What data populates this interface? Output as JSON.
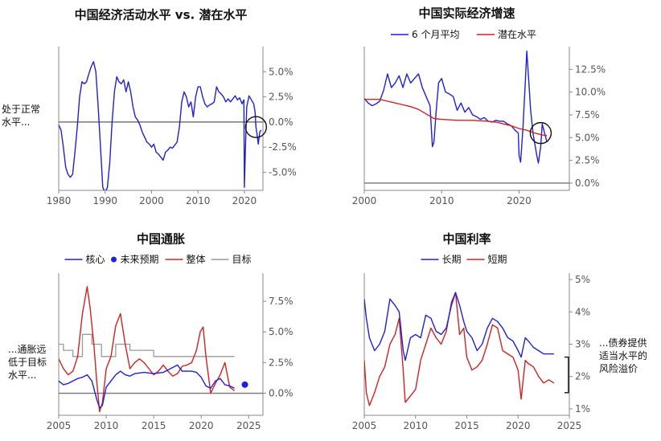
{
  "notes": {
    "activity": [
      "处于正常",
      "水平..."
    ],
    "inflation": [
      "...通胀远",
      "低于目标",
      "水平..."
    ],
    "rates": [
      "...债券提供",
      "适当水平的",
      "风险溢价"
    ]
  },
  "colors": {
    "blue": "#1f1fdd",
    "red": "#d42020",
    "gray": "#9a9a9a",
    "axis": "#888888",
    "zero": "#777777"
  },
  "chart_data": [
    {
      "id": "activity",
      "type": "line",
      "title": "中国经济活动水平 vs. 潜在水平",
      "xlim": [
        1980,
        2024
      ],
      "ylim": [
        -6.8,
        7.5
      ],
      "xticks": [
        1980,
        1990,
        2000,
        2010,
        2020
      ],
      "xtick_labels": [
        "1980",
        "1990",
        "2000",
        "2010",
        "2020"
      ],
      "yticks": [
        5,
        2.5,
        0,
        -2.5,
        -5
      ],
      "ytick_labels": [
        "5.0%",
        "2.5%",
        "0.0%",
        "-2.5%",
        "-5.0%"
      ],
      "y_axis_side": "right",
      "zero_line": 0,
      "circle": {
        "x": 2022.5,
        "y": -0.5
      },
      "series": [
        {
          "color": "blue",
          "x": [
            1980,
            1980.5,
            1981,
            1981.5,
            1982,
            1982.5,
            1983,
            1983.5,
            1984,
            1984.5,
            1985,
            1985.5,
            1986,
            1986.5,
            1987,
            1987.5,
            1988,
            1988.5,
            1989,
            1989.5,
            1990,
            1990.5,
            1991,
            1991.5,
            1992,
            1992.5,
            1993,
            1993.5,
            1994,
            1994.5,
            1995,
            1995.5,
            1996,
            1996.5,
            1997,
            1997.5,
            1998,
            1998.5,
            1999,
            1999.5,
            2000,
            2000.5,
            2001,
            2001.5,
            2002,
            2002.5,
            2003,
            2003.5,
            2004,
            2004.5,
            2005,
            2005.5,
            2006,
            2006.5,
            2007,
            2007.5,
            2008,
            2008.5,
            2009,
            2009.5,
            2010,
            2010.5,
            2011,
            2011.5,
            2012,
            2012.5,
            2013,
            2013.5,
            2014,
            2014.5,
            2015,
            2015.5,
            2016,
            2016.5,
            2017,
            2017.5,
            2018,
            2018.5,
            2019,
            2019.5,
            2019.9,
            2020,
            2020.2,
            2020.5,
            2021,
            2021.5,
            2022,
            2022.3,
            2022.5,
            2022.8,
            2023,
            2023.3,
            2023.6
          ],
          "y": [
            -0.3,
            -0.8,
            -2.5,
            -4.5,
            -5.2,
            -5.5,
            -5.2,
            -3,
            -0.5,
            2.5,
            4,
            3.8,
            4,
            4.8,
            5.5,
            6,
            5,
            1.5,
            -2.5,
            -6.5,
            -7,
            -6.5,
            -4,
            0,
            3,
            4.5,
            4,
            3.8,
            4.2,
            3,
            4,
            3,
            1.5,
            0.5,
            0.2,
            -0.3,
            -1,
            -1.5,
            -2,
            -2.2,
            -2.5,
            -2.2,
            -3,
            -3.2,
            -3.5,
            -3.8,
            -3,
            -2.8,
            -2.5,
            -2.6,
            -2.3,
            -2,
            -0.5,
            2,
            3,
            2.5,
            1.5,
            2,
            0.5,
            2.5,
            3.5,
            3.5,
            2.5,
            1.8,
            1.5,
            1.7,
            1.8,
            2,
            3.5,
            3,
            2.8,
            2.5,
            2,
            2.3,
            2,
            2.3,
            2.6,
            2.2,
            2.4,
            1.8,
            2.2,
            -6.5,
            -3,
            1.5,
            2.6,
            2.2,
            1.8,
            1,
            -0.5,
            -1.5,
            -2.2,
            -1,
            -0.8
          ]
        }
      ]
    },
    {
      "id": "growth",
      "type": "line",
      "title": "中国实际经济增速",
      "legend": [
        "6 个月平均",
        "潜在水平"
      ],
      "xlim": [
        2000,
        2026.5
      ],
      "ylim": [
        -0.8,
        15
      ],
      "xticks": [
        2000,
        2010,
        2020
      ],
      "xtick_labels": [
        "2000",
        "2010",
        "2020"
      ],
      "yticks": [
        12.5,
        10,
        7.5,
        5,
        2.5,
        0
      ],
      "ytick_labels": [
        "12.5%",
        "10.0%",
        "7.5%",
        "5.0%",
        "2.5%",
        "0.0%"
      ],
      "y_axis_side": "right",
      "zero_line": 0,
      "circle": {
        "x": 2022.8,
        "y": 5.5
      },
      "series": [
        {
          "name": "6 个月平均",
          "color": "blue",
          "x": [
            2000,
            2000.5,
            2001,
            2001.5,
            2002,
            2002.5,
            2003,
            2003.5,
            2004,
            2004.5,
            2005,
            2005.5,
            2006,
            2006.5,
            2007,
            2007.5,
            2008,
            2008.5,
            2008.8,
            2009,
            2009.3,
            2009.6,
            2010,
            2010.5,
            2011,
            2011.5,
            2012,
            2012.5,
            2013,
            2013.5,
            2014,
            2014.5,
            2015,
            2015.5,
            2016,
            2016.5,
            2017,
            2017.5,
            2018,
            2018.5,
            2019,
            2019.5,
            2019.9,
            2020,
            2020.2,
            2020.5,
            2020.8,
            2021,
            2021.2,
            2021.5,
            2021.8,
            2022,
            2022.3,
            2022.5,
            2022.8,
            2023,
            2023.3,
            2023.6
          ],
          "y": [
            9.3,
            8.8,
            8.5,
            8.7,
            9,
            10.2,
            12,
            10.5,
            11,
            11.8,
            10.5,
            12,
            11,
            11.5,
            12,
            10.5,
            9.5,
            8.5,
            4,
            4.5,
            8,
            11,
            11.5,
            10,
            9.8,
            9.5,
            8,
            8.8,
            7.8,
            8.3,
            7.5,
            7.3,
            7,
            7.2,
            6.8,
            6.7,
            6.9,
            6.8,
            6.8,
            6.5,
            6.3,
            5.8,
            5.5,
            3,
            2.3,
            6,
            11,
            14.5,
            12,
            8,
            5.5,
            4.5,
            3,
            2.2,
            4,
            6.5,
            5.5,
            4.5
          ]
        },
        {
          "name": "潜在水平",
          "color": "red",
          "x": [
            2000,
            2002,
            2003,
            2004,
            2005,
            2006,
            2007,
            2008,
            2009,
            2010,
            2012,
            2014,
            2016,
            2017,
            2018,
            2019,
            2020,
            2021,
            2022,
            2023,
            2023.6
          ],
          "y": [
            9.2,
            9.2,
            9,
            8.8,
            8.6,
            8.4,
            8.1,
            7.6,
            7.1,
            7,
            6.9,
            6.9,
            6.8,
            6.7,
            6.5,
            6.3,
            6,
            5.8,
            5.5,
            5.3,
            5.2
          ]
        }
      ]
    },
    {
      "id": "inflation",
      "type": "line",
      "title": "中国通胀",
      "legend": [
        "核心",
        "未来预期",
        "整体",
        "目标"
      ],
      "xlim": [
        2005,
        2026.5
      ],
      "ylim": [
        -1.8,
        9.8
      ],
      "xticks": [
        2005,
        2010,
        2015,
        2020,
        2025
      ],
      "xtick_labels": [
        "2005",
        "2010",
        "2015",
        "2020",
        "2025"
      ],
      "yticks": [
        7.5,
        5,
        2.5,
        0
      ],
      "ytick_labels": [
        "7.5%",
        "5.0%",
        "2.5%",
        "0.0%"
      ],
      "y_axis_side": "right",
      "zero_line": 0,
      "forecast_point": {
        "x": 2024.6,
        "y": 0.7
      },
      "series": [
        {
          "name": "目标",
          "color": "gray",
          "x": [
            2005,
            2005.5,
            2005.5,
            2006.5,
            2006.5,
            2007.5,
            2007.5,
            2008.5,
            2008.5,
            2009.5,
            2009.5,
            2011,
            2011,
            2012.5,
            2012.5,
            2015,
            2015,
            2018,
            2018,
            2023.5
          ],
          "y": [
            4,
            4,
            3.5,
            3.5,
            3,
            3,
            4.8,
            4.8,
            4,
            4,
            3,
            3,
            4,
            4,
            3.5,
            3.5,
            3,
            3,
            3,
            3
          ]
        },
        {
          "name": "整体",
          "color": "red",
          "x": [
            2005,
            2005.5,
            2006,
            2006.5,
            2007,
            2007.5,
            2008,
            2008.3,
            2008.7,
            2009,
            2009.3,
            2009.6,
            2010,
            2010.5,
            2011,
            2011.5,
            2012,
            2012.5,
            2013,
            2013.5,
            2014,
            2014.5,
            2015,
            2015.5,
            2016,
            2016.5,
            2017,
            2017.5,
            2018,
            2018.5,
            2019,
            2019.5,
            2019.9,
            2020.2,
            2020.5,
            2021,
            2021.5,
            2022,
            2022.5,
            2023,
            2023.5
          ],
          "y": [
            2.8,
            2,
            1.5,
            1.8,
            3,
            6.5,
            8.7,
            7,
            4,
            1,
            -1.5,
            -0.8,
            2,
            3,
            5.5,
            6.5,
            4,
            2,
            2.5,
            2.8,
            2.5,
            2,
            1.5,
            1.8,
            2.3,
            1.8,
            1.4,
            1.6,
            2.2,
            2.3,
            2.5,
            3.5,
            5,
            5.4,
            3,
            0,
            0.8,
            1.5,
            2.5,
            0.5,
            0.2
          ]
        },
        {
          "name": "核心",
          "color": "blue",
          "x": [
            2005,
            2005.5,
            2006,
            2006.5,
            2007,
            2007.5,
            2008,
            2008.5,
            2009,
            2009.3,
            2009.6,
            2010,
            2010.5,
            2011,
            2011.5,
            2012,
            2012.5,
            2013,
            2014,
            2015,
            2016,
            2017,
            2017.5,
            2018,
            2018.5,
            2019,
            2019.5,
            2020,
            2020.5,
            2021,
            2021.5,
            2022,
            2022.5,
            2023,
            2023.5
          ],
          "y": [
            1,
            0.7,
            0.8,
            1,
            1.2,
            1.3,
            1.5,
            1,
            -0.5,
            -1.2,
            -1,
            0.5,
            1,
            1.5,
            1.8,
            1.5,
            1.4,
            1.6,
            1.7,
            1.6,
            1.7,
            2.1,
            2.3,
            1.8,
            1.8,
            1.8,
            1.7,
            1.3,
            0.6,
            0.4,
            1,
            1.2,
            0.7,
            0.6,
            0.4
          ]
        }
      ]
    },
    {
      "id": "rates",
      "type": "line",
      "title": "中国利率",
      "legend": [
        "长期",
        "短期"
      ],
      "xlim": [
        2005,
        2025
      ],
      "ylim": [
        0.8,
        5.2
      ],
      "xticks": [
        2005,
        2010,
        2015,
        2020,
        2025
      ],
      "xtick_labels": [
        "2005",
        "2010",
        "2015",
        "2020",
        "2025"
      ],
      "yticks": [
        5,
        4,
        3,
        2,
        1
      ],
      "ytick_labels": [
        "5%",
        "4%",
        "3%",
        "2%",
        "1%"
      ],
      "y_axis_side": "right",
      "bracket": {
        "x": 2024.6,
        "y_from": 1.5,
        "y_to": 2.6
      },
      "series": [
        {
          "name": "短期",
          "color": "red",
          "x": [
            2005,
            2005.2,
            2005.5,
            2006,
            2006.5,
            2007,
            2007.5,
            2008,
            2008.4,
            2008.8,
            2009,
            2009.5,
            2010,
            2010.5,
            2011,
            2011.5,
            2012,
            2012.5,
            2013,
            2013.5,
            2013.9,
            2014.3,
            2014.7,
            2015,
            2015.5,
            2016,
            2016.5,
            2017,
            2017.5,
            2018,
            2018.5,
            2019,
            2019.5,
            2020,
            2020.3,
            2020.7,
            2021,
            2021.5,
            2022,
            2022.5,
            2023,
            2023.5
          ],
          "y": [
            2.5,
            1.5,
            1.1,
            1.5,
            2,
            2.3,
            3,
            3.3,
            3.8,
            2.2,
            1.2,
            1.4,
            1.6,
            2.5,
            3,
            3.5,
            3.2,
            3,
            3.4,
            4.3,
            4.6,
            3.3,
            3.5,
            2.6,
            2.2,
            2.3,
            2.5,
            3,
            3.6,
            3.5,
            2.8,
            2.7,
            2.6,
            2.2,
            1.3,
            2.5,
            2.4,
            2.3,
            2,
            1.8,
            1.9,
            1.8
          ]
        },
        {
          "name": "长期",
          "color": "blue",
          "x": [
            2005,
            2005.2,
            2005.5,
            2006,
            2006.5,
            2007,
            2007.5,
            2008,
            2008.4,
            2008.8,
            2009,
            2009.5,
            2010,
            2010.5,
            2011,
            2011.5,
            2012,
            2012.5,
            2013,
            2013.5,
            2013.9,
            2014.3,
            2014.7,
            2015,
            2015.5,
            2016,
            2016.5,
            2017,
            2017.5,
            2018,
            2018.5,
            2019,
            2019.5,
            2020,
            2020.3,
            2020.7,
            2021,
            2021.5,
            2022,
            2022.5,
            2023,
            2023.5
          ],
          "y": [
            4.4,
            3.8,
            3.2,
            2.8,
            3,
            3.4,
            4.4,
            4.2,
            4,
            2.8,
            2.5,
            3.2,
            3.3,
            3.2,
            3.9,
            3.8,
            3.4,
            3.3,
            3.5,
            4.2,
            4.6,
            4.2,
            3.7,
            3.4,
            3.2,
            2.8,
            3,
            3.5,
            3.8,
            3.7,
            3.5,
            3.2,
            3.1,
            2.8,
            2.6,
            3.2,
            3.1,
            2.9,
            2.8,
            2.7,
            2.7,
            2.7
          ]
        }
      ]
    }
  ]
}
